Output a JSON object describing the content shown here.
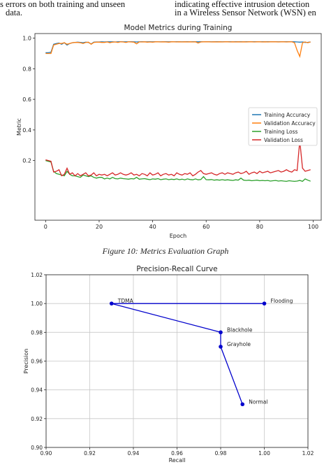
{
  "header_text": {
    "left_lines": [
      "s errors on both training and unseen",
      "data."
    ],
    "right_lines": [
      "indicating effective intrusion detection",
      "in a Wireless Sensor Network (WSN) en"
    ]
  },
  "figure10": {
    "caption": "Figure 10: Metrics Evaluation Graph"
  },
  "chart_data": [
    {
      "type": "line",
      "title": "Model Metrics during Training",
      "xlabel": "Epoch",
      "ylabel": "Metric",
      "xlim": [
        -4,
        103
      ],
      "ylim": [
        -0.19,
        1.03
      ],
      "xticks": [
        "0",
        "20",
        "40",
        "60",
        "80",
        "100"
      ],
      "yticks": [
        "0.2",
        "0.4",
        "0.6",
        "0.8",
        "1.0"
      ],
      "grid": false,
      "legend_position": "center-right",
      "series": [
        {
          "name": "Training Accuracy",
          "color": "#1f77b4",
          "values": [
            0.905,
            0.905,
            0.908,
            0.96,
            0.965,
            0.968,
            0.96,
            0.97,
            0.955,
            0.965,
            0.97,
            0.972,
            0.974,
            0.972,
            0.97,
            0.974,
            0.972,
            0.962,
            0.974,
            0.975,
            0.975,
            0.976,
            0.975,
            0.976,
            0.976,
            0.976,
            0.975,
            0.976,
            0.977,
            0.976,
            0.976,
            0.976,
            0.977,
            0.976,
            0.975,
            0.976,
            0.977,
            0.976,
            0.976,
            0.977,
            0.976,
            0.977,
            0.976,
            0.976,
            0.977,
            0.977,
            0.976,
            0.977,
            0.976,
            0.977,
            0.977,
            0.976,
            0.977,
            0.977,
            0.976,
            0.977,
            0.977,
            0.976,
            0.977,
            0.976,
            0.977,
            0.977,
            0.976,
            0.977,
            0.977,
            0.977,
            0.976,
            0.977,
            0.977,
            0.977,
            0.976,
            0.977,
            0.977,
            0.977,
            0.976,
            0.977,
            0.977,
            0.977,
            0.977,
            0.977,
            0.976,
            0.977,
            0.977,
            0.977,
            0.977,
            0.977,
            0.977,
            0.976,
            0.977,
            0.977,
            0.977,
            0.977,
            0.977,
            0.976,
            0.975,
            0.974,
            0.975,
            0.972,
            0.973,
            0.975
          ]
        },
        {
          "name": "Validation Accuracy",
          "color": "#ff7f0e",
          "values": [
            0.9,
            0.9,
            0.9,
            0.955,
            0.96,
            0.965,
            0.965,
            0.97,
            0.96,
            0.965,
            0.97,
            0.972,
            0.972,
            0.97,
            0.965,
            0.972,
            0.974,
            0.96,
            0.972,
            0.974,
            0.974,
            0.972,
            0.972,
            0.975,
            0.97,
            0.974,
            0.975,
            0.972,
            0.976,
            0.975,
            0.972,
            0.976,
            0.975,
            0.974,
            0.963,
            0.975,
            0.975,
            0.976,
            0.974,
            0.975,
            0.974,
            0.976,
            0.976,
            0.975,
            0.976,
            0.975,
            0.974,
            0.976,
            0.976,
            0.975,
            0.976,
            0.975,
            0.976,
            0.975,
            0.976,
            0.975,
            0.976,
            0.968,
            0.975,
            0.976,
            0.976,
            0.976,
            0.975,
            0.976,
            0.975,
            0.976,
            0.975,
            0.976,
            0.976,
            0.975,
            0.976,
            0.975,
            0.976,
            0.975,
            0.976,
            0.975,
            0.976,
            0.976,
            0.975,
            0.976,
            0.976,
            0.975,
            0.976,
            0.975,
            0.976,
            0.976,
            0.976,
            0.975,
            0.976,
            0.976,
            0.975,
            0.976,
            0.976,
            0.97,
            0.92,
            0.88,
            0.97,
            0.975,
            0.97,
            0.975
          ]
        },
        {
          "name": "Training Loss",
          "color": "#2ca02c",
          "values": [
            0.2,
            0.195,
            0.19,
            0.13,
            0.115,
            0.11,
            0.105,
            0.1,
            0.13,
            0.11,
            0.1,
            0.1,
            0.095,
            0.09,
            0.105,
            0.1,
            0.095,
            0.1,
            0.09,
            0.085,
            0.09,
            0.09,
            0.08,
            0.085,
            0.08,
            0.09,
            0.082,
            0.08,
            0.085,
            0.082,
            0.08,
            0.078,
            0.082,
            0.08,
            0.09,
            0.078,
            0.08,
            0.082,
            0.078,
            0.075,
            0.08,
            0.078,
            0.082,
            0.075,
            0.078,
            0.08,
            0.075,
            0.078,
            0.076,
            0.08,
            0.075,
            0.078,
            0.074,
            0.08,
            0.076,
            0.074,
            0.08,
            0.074,
            0.076,
            0.095,
            0.075,
            0.074,
            0.076,
            0.072,
            0.074,
            0.072,
            0.075,
            0.072,
            0.074,
            0.072,
            0.07,
            0.074,
            0.072,
            0.085,
            0.072,
            0.07,
            0.072,
            0.068,
            0.07,
            0.072,
            0.068,
            0.07,
            0.068,
            0.07,
            0.066,
            0.068,
            0.07,
            0.066,
            0.068,
            0.066,
            0.064,
            0.068,
            0.066,
            0.064,
            0.066,
            0.07,
            0.064,
            0.08,
            0.072,
            0.065
          ]
        },
        {
          "name": "Validation Loss",
          "color": "#d62728",
          "values": [
            0.205,
            0.2,
            0.195,
            0.125,
            0.13,
            0.14,
            0.1,
            0.11,
            0.15,
            0.11,
            0.12,
            0.1,
            0.115,
            0.1,
            0.11,
            0.12,
            0.1,
            0.105,
            0.12,
            0.1,
            0.11,
            0.105,
            0.11,
            0.1,
            0.11,
            0.12,
            0.105,
            0.11,
            0.12,
            0.11,
            0.105,
            0.11,
            0.12,
            0.105,
            0.11,
            0.1,
            0.115,
            0.11,
            0.1,
            0.12,
            0.105,
            0.11,
            0.12,
            0.1,
            0.11,
            0.115,
            0.105,
            0.11,
            0.1,
            0.12,
            0.11,
            0.105,
            0.115,
            0.11,
            0.12,
            0.1,
            0.11,
            0.125,
            0.135,
            0.115,
            0.11,
            0.115,
            0.12,
            0.11,
            0.105,
            0.115,
            0.12,
            0.11,
            0.12,
            0.115,
            0.11,
            0.12,
            0.125,
            0.115,
            0.12,
            0.13,
            0.11,
            0.12,
            0.125,
            0.115,
            0.13,
            0.12,
            0.125,
            0.13,
            0.12,
            0.125,
            0.13,
            0.135,
            0.125,
            0.13,
            0.14,
            0.13,
            0.125,
            0.14,
            0.135,
            0.33,
            0.15,
            0.13,
            0.135,
            0.14
          ]
        }
      ]
    },
    {
      "type": "line",
      "title": "Precision-Recall Curve",
      "xlabel": "Recall",
      "ylabel": "Precision",
      "xlim": [
        0.9,
        1.02
      ],
      "ylim": [
        0.9,
        1.02
      ],
      "xticks": [
        "0.90",
        "0.92",
        "0.94",
        "0.96",
        "0.98",
        "1.00",
        "1.02"
      ],
      "yticks": [
        "0.90",
        "0.92",
        "0.94",
        "0.96",
        "0.98",
        "1.00",
        "1.02"
      ],
      "grid": true,
      "color": "#0000cc",
      "points": [
        {
          "label": "Flooding",
          "x": 1.0,
          "y": 1.0
        },
        {
          "label": "TDMA",
          "x": 0.93,
          "y": 1.0
        },
        {
          "label": "Blackhole",
          "x": 0.98,
          "y": 0.98
        },
        {
          "label": "Grayhole",
          "x": 0.98,
          "y": 0.97
        },
        {
          "label": "Normal",
          "x": 0.99,
          "y": 0.93
        }
      ]
    }
  ]
}
